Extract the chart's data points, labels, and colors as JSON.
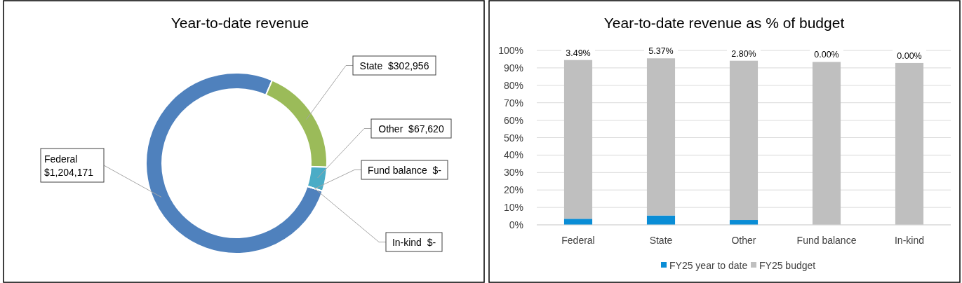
{
  "chart_data": [
    {
      "type": "donut",
      "title": "Year-to-date revenue",
      "categories": [
        "Federal",
        "State",
        "Other",
        "Fund balance",
        "In-kind"
      ],
      "values": [
        1204171,
        302956,
        67620,
        0,
        0
      ],
      "value_labels": [
        "$1,204,171",
        "$302,956",
        "$67,620",
        "$-",
        "$-"
      ],
      "colors": [
        "#4f81bd",
        "#9bbb59",
        "#4bacc6",
        "#f79646",
        "#8064a2"
      ]
    },
    {
      "type": "bar",
      "title": "Year-to-date revenue as % of budget",
      "categories": [
        "Federal",
        "State",
        "Other",
        "Fund balance",
        "In-kind"
      ],
      "stacked": true,
      "series": [
        {
          "name": "FY25 year to date",
          "color": "#0a8dd6",
          "values": [
            3.49,
            5.37,
            2.8,
            0,
            0
          ]
        },
        {
          "name": "FY25 budget",
          "color": "#bfbfbf",
          "values": [
            91.0,
            90.1,
            91.3,
            93.4,
            92.8
          ]
        }
      ],
      "ylim": [
        0,
        100
      ],
      "yticks": [
        {
          "value": 0,
          "label": "0%"
        },
        {
          "value": 10,
          "label": "10%"
        },
        {
          "value": 20,
          "label": "20%"
        },
        {
          "value": 30,
          "label": "30%"
        },
        {
          "value": 40,
          "label": "40%"
        },
        {
          "value": 50,
          "label": "50%"
        },
        {
          "value": 60,
          "label": "60%"
        },
        {
          "value": 70,
          "label": "70%"
        },
        {
          "value": 80,
          "label": "80%"
        },
        {
          "value": 90,
          "label": "90%"
        },
        {
          "value": 100,
          "label": "100%"
        }
      ],
      "annotations": [
        {
          "text": "3.49%",
          "x": "Federal",
          "y": 94.5
        },
        {
          "text": "5.37%",
          "x": "State",
          "y": 95.5
        },
        {
          "text": "2.80%",
          "x": "Other",
          "y": 94.1
        },
        {
          "text": "0.00%",
          "x": "Fund balance",
          "y": 93.4
        },
        {
          "text": "0.00%",
          "x": "In-kind",
          "y": 92.8
        }
      ],
      "grid": "y",
      "legend": "bottom"
    }
  ]
}
